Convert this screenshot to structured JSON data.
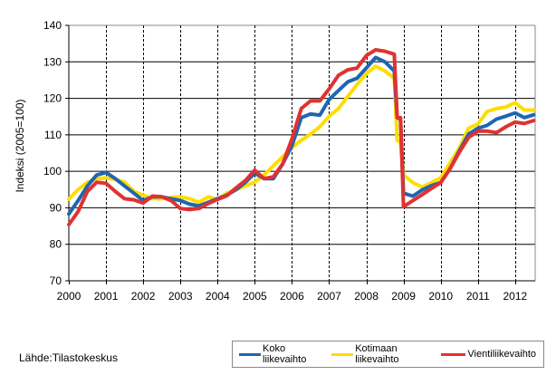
{
  "chart_data": {
    "type": "line",
    "title": "",
    "xlabel": "",
    "ylabel": "Indeksi (2005=100)",
    "ylim": [
      70,
      140
    ],
    "yticks": [
      70,
      80,
      90,
      100,
      110,
      120,
      130,
      140
    ],
    "xlim": [
      2000,
      2012.54
    ],
    "xtick_labels": [
      "2000",
      "2001",
      "2002",
      "2003",
      "2004",
      "2005",
      "2006",
      "2007",
      "2008",
      "2009",
      "2010",
      "2011",
      "2012"
    ],
    "grid": {
      "horizontal": "solid",
      "vertical": "dashed"
    },
    "legend_position": "bottom-right",
    "x": [
      2000,
      2000.25,
      2000.5,
      2000.75,
      2001,
      2001.25,
      2001.5,
      2001.75,
      2002,
      2002.25,
      2002.5,
      2002.75,
      2003,
      2003.25,
      2003.5,
      2003.75,
      2004,
      2004.25,
      2004.5,
      2004.75,
      2005,
      2005.25,
      2005.5,
      2005.75,
      2006,
      2006.25,
      2006.5,
      2006.75,
      2007,
      2007.25,
      2007.5,
      2007.75,
      2008,
      2008.25,
      2008.5,
      2008.75,
      2008.83,
      2008.92,
      2009,
      2009.25,
      2009.5,
      2009.75,
      2010,
      2010.25,
      2010.5,
      2010.75,
      2011,
      2011.25,
      2011.5,
      2011.75,
      2012,
      2012.25,
      2012.5
    ],
    "series": [
      {
        "name": "Koko liikevaihto",
        "color": "#1f66b0",
        "values": [
          88.3,
          92,
          96,
          99,
          99.7,
          98,
          96,
          94,
          92,
          93,
          93,
          92.5,
          92,
          91,
          90.5,
          91.5,
          92.5,
          93.5,
          95,
          97,
          99.5,
          98,
          98,
          102,
          107,
          114.7,
          115.7,
          115.4,
          119.7,
          122.1,
          124.5,
          125.5,
          128.3,
          131.2,
          130,
          127.5,
          114.7,
          114.3,
          94,
          93.2,
          94.9,
          96.1,
          96.9,
          100.7,
          105.6,
          110.2,
          111.8,
          112.6,
          114.3,
          115.1,
          116,
          114.7,
          115.5
        ]
      },
      {
        "name": "Kotimaan liikevaihto",
        "color": "#ffdd00",
        "values": [
          92.4,
          95,
          97,
          98,
          98.2,
          97.8,
          97,
          94.5,
          93.5,
          92.5,
          92.5,
          92.8,
          93,
          92.5,
          91.5,
          93,
          92.3,
          94,
          95,
          96,
          97,
          99,
          101.5,
          104,
          106.5,
          108.5,
          110.2,
          112.2,
          115.1,
          117.2,
          120.5,
          123.8,
          126.7,
          128.8,
          127.5,
          125.5,
          108.5,
          108,
          99,
          96.9,
          95.7,
          96.9,
          98.2,
          102.3,
          106.4,
          111.8,
          113,
          116.4,
          117.2,
          117.6,
          118.8,
          116.8,
          116.8
        ]
      },
      {
        "name": "Vientiliikevaihto",
        "color": "#e03232",
        "values": [
          85.4,
          89,
          94.5,
          97,
          96.7,
          94.5,
          92.5,
          92.2,
          91.3,
          93.2,
          93,
          92,
          89.8,
          89.5,
          89.8,
          91.2,
          92.3,
          93.3,
          95.5,
          97.5,
          100.3,
          98,
          98.5,
          102,
          108.9,
          117.2,
          119.3,
          119.3,
          122.6,
          126.3,
          127.8,
          128.3,
          131.7,
          133.3,
          132.9,
          132.1,
          114.7,
          114.7,
          90.3,
          92,
          93.6,
          95.3,
          96.9,
          100.7,
          105.2,
          109.3,
          111,
          111,
          110.6,
          112.2,
          113.5,
          113.1,
          113.9
        ]
      }
    ]
  },
  "source": "Lähde:Tilastokeskus"
}
